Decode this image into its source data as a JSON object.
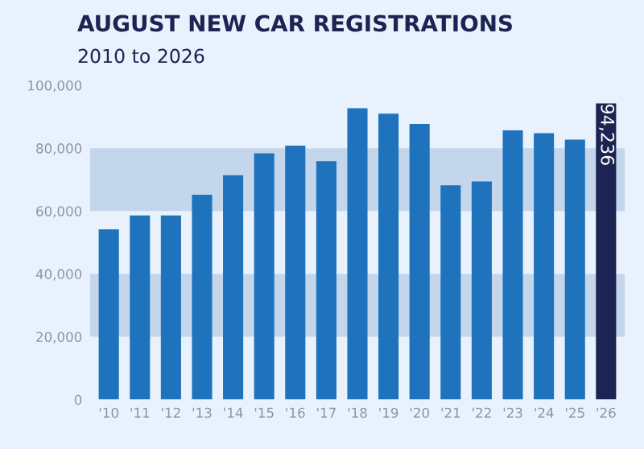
{
  "chart_data": {
    "type": "bar",
    "title": "AUGUST NEW CAR REGISTRATIONS",
    "subtitle": "2010 to 2026",
    "categories": [
      "'10",
      "'11",
      "'12",
      "'13",
      "'14",
      "'15",
      "'16",
      "'17",
      "'18",
      "'19",
      "'20",
      "'21",
      "'22",
      "'23",
      "'24",
      "'25",
      "'26"
    ],
    "values": [
      54200,
      58600,
      58600,
      65200,
      71400,
      78400,
      80800,
      75900,
      92700,
      91000,
      87700,
      68200,
      69400,
      85700,
      84800,
      82700,
      94236
    ],
    "colors": [
      "#1f73bd",
      "#1f73bd",
      "#1f73bd",
      "#1f73bd",
      "#1f73bd",
      "#1f73bd",
      "#1f73bd",
      "#1f73bd",
      "#1f73bd",
      "#1f73bd",
      "#1f73bd",
      "#1f73bd",
      "#1f73bd",
      "#1f73bd",
      "#1f73bd",
      "#1f73bd",
      "#1b2452"
    ],
    "value_labels": [
      null,
      null,
      null,
      null,
      null,
      null,
      null,
      null,
      null,
      null,
      null,
      null,
      null,
      null,
      null,
      null,
      "94,236"
    ],
    "ylim": [
      0,
      100000
    ],
    "yticks": [
      {
        "value": 0,
        "label": "0"
      },
      {
        "value": 20000,
        "label": "20,000"
      },
      {
        "value": 40000,
        "label": "40,000"
      },
      {
        "value": 60000,
        "label": "60,000"
      },
      {
        "value": 80000,
        "label": "80,000"
      },
      {
        "value": 100000,
        "label": "100,000"
      }
    ],
    "bands": [
      {
        "axis": "y",
        "from": 20000,
        "to": 40000,
        "label": null,
        "color": "#c3d6ec"
      },
      {
        "axis": "y",
        "from": 60000,
        "to": 80000,
        "label": null,
        "color": "#c3d6ec"
      }
    ],
    "grid": false,
    "legend": false
  }
}
